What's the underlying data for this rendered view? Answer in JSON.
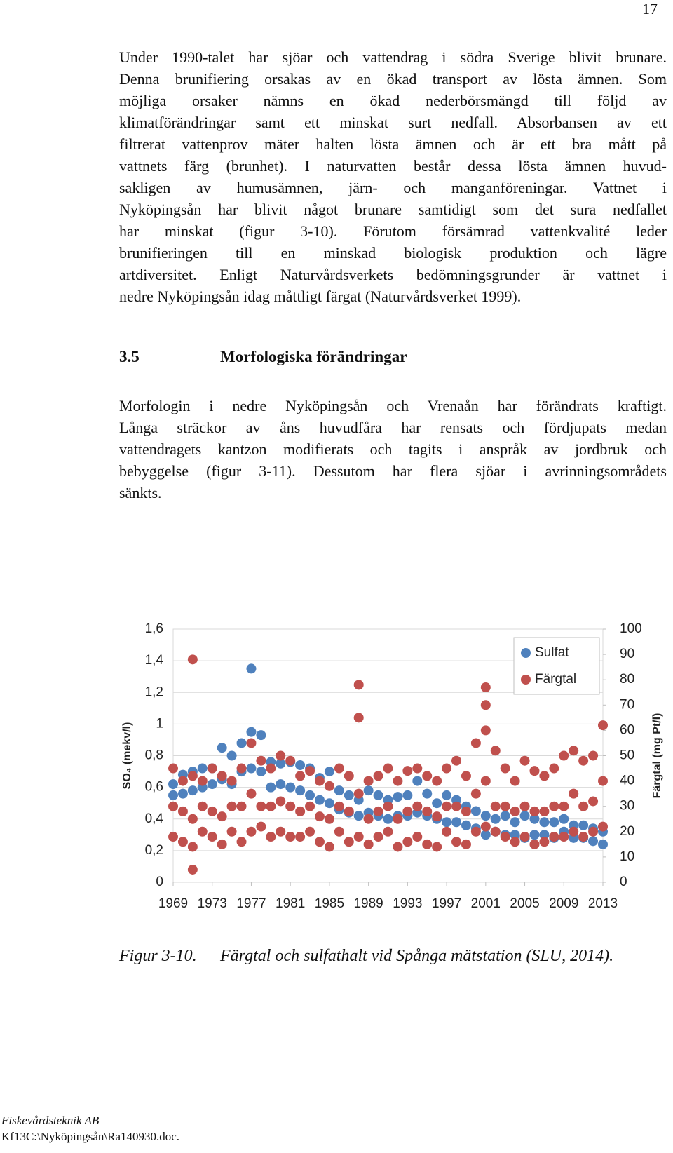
{
  "page_number": "17",
  "paragraphs": [
    {
      "lines": [
        "Under 1990-talet har sjöar och vattendrag i södra Sverige blivit brunare.",
        "Denna brunifiering orsakas av en ökad transport av lösta ämnen. Som",
        "möjliga orsaker nämns en ökad nederbörsmängd till följd av",
        "klimatförändringar samt ett minskat surt nedfall. Absorbansen av ett",
        "filtrerat vattenprov mäter halten lösta ämnen och är ett bra mått på",
        "vattnets färg (brunhet). I naturvatten består dessa lösta ämnen huvud-",
        "sakligen av humusämnen, järn- och manganföreningar. Vattnet i",
        "Nyköpingsån har blivit något brunare samtidigt som det sura nedfallet",
        "har minskat (figur 3-10). Förutom försämrad vattenkvalité leder",
        "brunifieringen till en minskad biologisk produktion och lägre",
        "artdiversitet. Enligt Naturvårdsverkets bedömningsgrunder är vattnet i",
        "nedre Nyköpingsån idag måttligt färgat (Naturvårdsverket 1999)."
      ]
    },
    {
      "lines": [
        "Morfologin i nedre Nyköpingsån och Vrenaån har förändrats kraftigt.",
        "Långa sträckor av åns huvudfåra har rensats och fördjupats medan",
        "vattendragets kantzon modifierats och tagits i anspråk av jordbruk och",
        "bebyggelse (figur 3-11). Dessutom har flera sjöar i avrinningsområdets",
        "sänkts."
      ]
    }
  ],
  "heading": {
    "number": "3.5",
    "title": "Morfologiska förändringar"
  },
  "chart_data": {
    "type": "scatter",
    "y_label": "SO₄ (mekv/l)",
    "y2_label": "Färgtal (mg Pt/l)",
    "xlim": [
      1969,
      2013
    ],
    "xticks": [
      1969,
      1973,
      1977,
      1981,
      1985,
      1989,
      1993,
      1997,
      2001,
      2005,
      2009,
      2013
    ],
    "ylim": [
      0,
      1.6
    ],
    "yticks": [
      0,
      {
        "value": 0.2,
        "label": "0,2"
      },
      {
        "value": 0.4,
        "label": "0,4"
      },
      {
        "value": 0.6,
        "label": "0,6"
      },
      {
        "value": 0.8,
        "label": "0,8"
      },
      1,
      {
        "value": 1.2,
        "label": "1,2"
      },
      {
        "value": 1.4,
        "label": "1,4"
      },
      {
        "value": 1.6,
        "label": "1,6"
      }
    ],
    "y2lim": [
      0,
      100
    ],
    "y2ticks": [
      0,
      10,
      20,
      30,
      40,
      50,
      60,
      70,
      80,
      90,
      100
    ],
    "grid": true,
    "legend": "upper right",
    "series": [
      {
        "name": "Sulfat",
        "color": "#4f81bd",
        "x": [
          1969,
          1969,
          1970,
          1970,
          1971,
          1971,
          1972,
          1972,
          1973,
          1973,
          1974,
          1974,
          1975,
          1975,
          1976,
          1976,
          1977,
          1977,
          1978,
          1978,
          1979,
          1979,
          1980,
          1980,
          1981,
          1981,
          1982,
          1982,
          1983,
          1983,
          1984,
          1984,
          1985,
          1985,
          1986,
          1986,
          1987,
          1987,
          1988,
          1988,
          1989,
          1989,
          1990,
          1990,
          1991,
          1991,
          1992,
          1992,
          1993,
          1993,
          1994,
          1994,
          1995,
          1995,
          1996,
          1996,
          1997,
          1997,
          1998,
          1998,
          1999,
          1999,
          2000,
          2000,
          2001,
          2001,
          2002,
          2002,
          2003,
          2003,
          2004,
          2004,
          2005,
          2005,
          2006,
          2006,
          2007,
          2007,
          2008,
          2008,
          2009,
          2009,
          2010,
          2010,
          2011,
          2011,
          2012,
          2012,
          2013,
          2013,
          1977
        ],
        "values": [
          0.62,
          0.55,
          0.68,
          0.56,
          0.7,
          0.58,
          0.72,
          0.6,
          0.72,
          0.62,
          0.85,
          0.65,
          0.8,
          0.62,
          0.88,
          0.7,
          0.95,
          0.72,
          0.93,
          0.7,
          0.76,
          0.6,
          0.75,
          0.62,
          0.76,
          0.6,
          0.74,
          0.58,
          0.72,
          0.55,
          0.66,
          0.52,
          0.7,
          0.5,
          0.58,
          0.46,
          0.55,
          0.44,
          0.52,
          0.42,
          0.58,
          0.44,
          0.55,
          0.42,
          0.52,
          0.4,
          0.54,
          0.42,
          0.55,
          0.42,
          0.64,
          0.44,
          0.56,
          0.42,
          0.5,
          0.4,
          0.55,
          0.38,
          0.52,
          0.38,
          0.48,
          0.36,
          0.45,
          0.34,
          0.42,
          0.3,
          0.4,
          0.32,
          0.42,
          0.3,
          0.38,
          0.3,
          0.42,
          0.28,
          0.4,
          0.3,
          0.38,
          0.3,
          0.38,
          0.28,
          0.4,
          0.32,
          0.36,
          0.28,
          0.36,
          0.28,
          0.34,
          0.26,
          0.32,
          0.24,
          1.35
        ]
      },
      {
        "name": "Färgtal",
        "color": "#c0504d",
        "axis": "y2",
        "x": [
          1969,
          1969,
          1969,
          1970,
          1970,
          1970,
          1971,
          1971,
          1971,
          1972,
          1972,
          1972,
          1973,
          1973,
          1973,
          1974,
          1974,
          1974,
          1975,
          1975,
          1975,
          1976,
          1976,
          1976,
          1977,
          1977,
          1977,
          1978,
          1978,
          1978,
          1979,
          1979,
          1979,
          1980,
          1980,
          1980,
          1981,
          1981,
          1981,
          1982,
          1982,
          1982,
          1983,
          1983,
          1983,
          1984,
          1984,
          1984,
          1985,
          1985,
          1985,
          1986,
          1986,
          1986,
          1987,
          1987,
          1987,
          1988,
          1988,
          1988,
          1989,
          1989,
          1989,
          1990,
          1990,
          1990,
          1991,
          1991,
          1991,
          1992,
          1992,
          1992,
          1993,
          1993,
          1993,
          1994,
          1994,
          1994,
          1995,
          1995,
          1995,
          1996,
          1996,
          1996,
          1997,
          1997,
          1997,
          1998,
          1998,
          1998,
          1999,
          1999,
          1999,
          2000,
          2000,
          2000,
          2001,
          2001,
          2001,
          2002,
          2002,
          2002,
          2003,
          2003,
          2003,
          2004,
          2004,
          2004,
          2005,
          2005,
          2005,
          2006,
          2006,
          2006,
          2007,
          2007,
          2007,
          2008,
          2008,
          2008,
          2009,
          2009,
          2009,
          2010,
          2010,
          2010,
          2011,
          2011,
          2011,
          2012,
          2012,
          2012,
          2013,
          2013,
          2013,
          1971,
          1971,
          1988,
          2001,
          2001
        ],
        "values": [
          45,
          30,
          18,
          40,
          28,
          16,
          42,
          25,
          14,
          40,
          30,
          20,
          45,
          28,
          18,
          42,
          26,
          15,
          40,
          30,
          20,
          45,
          30,
          16,
          55,
          35,
          20,
          48,
          30,
          22,
          45,
          30,
          18,
          50,
          32,
          20,
          48,
          30,
          18,
          42,
          28,
          18,
          44,
          30,
          20,
          40,
          26,
          16,
          38,
          25,
          14,
          45,
          30,
          20,
          42,
          28,
          16,
          78,
          35,
          18,
          40,
          25,
          15,
          42,
          28,
          18,
          45,
          30,
          20,
          40,
          25,
          14,
          44,
          28,
          16,
          45,
          30,
          18,
          42,
          28,
          15,
          40,
          26,
          14,
          45,
          30,
          20,
          48,
          30,
          16,
          42,
          28,
          15,
          55,
          35,
          20,
          77,
          40,
          22,
          52,
          30,
          20,
          45,
          30,
          18,
          40,
          28,
          16,
          48,
          30,
          18,
          44,
          28,
          15,
          42,
          28,
          16,
          45,
          30,
          18,
          50,
          30,
          18,
          52,
          35,
          20,
          48,
          30,
          18,
          50,
          32,
          20,
          62,
          40,
          22,
          88,
          5,
          65,
          70,
          60
        ]
      }
    ]
  },
  "caption": {
    "label": "Figur 3-10.",
    "text": "Färgtal och sulfathalt vid Spånga mätstation (SLU, 2014)."
  },
  "footer": {
    "company": "Fiskevårdsteknik AB",
    "file": "Kf13C:\\Nyköpingsån\\Ra140930.doc."
  }
}
